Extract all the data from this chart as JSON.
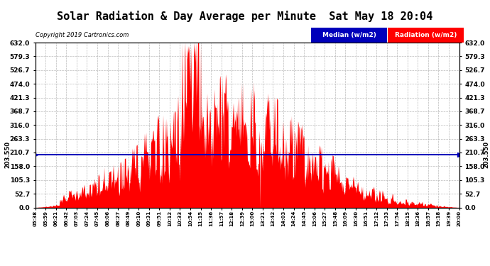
{
  "title": "Solar Radiation & Day Average per Minute  Sat May 18 20:04",
  "copyright": "Copyright 2019 Cartronics.com",
  "median_value": 203.55,
  "y_ticks": [
    0.0,
    52.7,
    105.3,
    158.0,
    210.7,
    263.3,
    316.0,
    368.7,
    421.3,
    474.0,
    526.7,
    579.3,
    632.0
  ],
  "ymax": 632.0,
  "ymin": 0.0,
  "bar_color": "#FF0000",
  "median_color": "#0000BB",
  "background_color": "#FFFFFF",
  "plot_bg_color": "#FFFFFF",
  "grid_color": "#AAAAAA",
  "title_fontsize": 11,
  "legend_blue_label": "Median (w/m2)",
  "legend_red_label": "Radiation (w/m2)",
  "x_tick_labels": [
    "05:38",
    "05:59",
    "06:21",
    "06:42",
    "07:03",
    "07:24",
    "07:45",
    "08:06",
    "08:27",
    "08:49",
    "09:10",
    "09:31",
    "09:51",
    "10:12",
    "10:33",
    "10:54",
    "11:15",
    "11:36",
    "11:57",
    "12:18",
    "12:39",
    "13:00",
    "13:21",
    "13:42",
    "14:03",
    "14:24",
    "14:45",
    "15:06",
    "15:27",
    "15:48",
    "16:09",
    "16:30",
    "16:51",
    "17:12",
    "17:33",
    "17:54",
    "18:15",
    "18:36",
    "18:57",
    "19:18",
    "19:39",
    "20:00"
  ]
}
